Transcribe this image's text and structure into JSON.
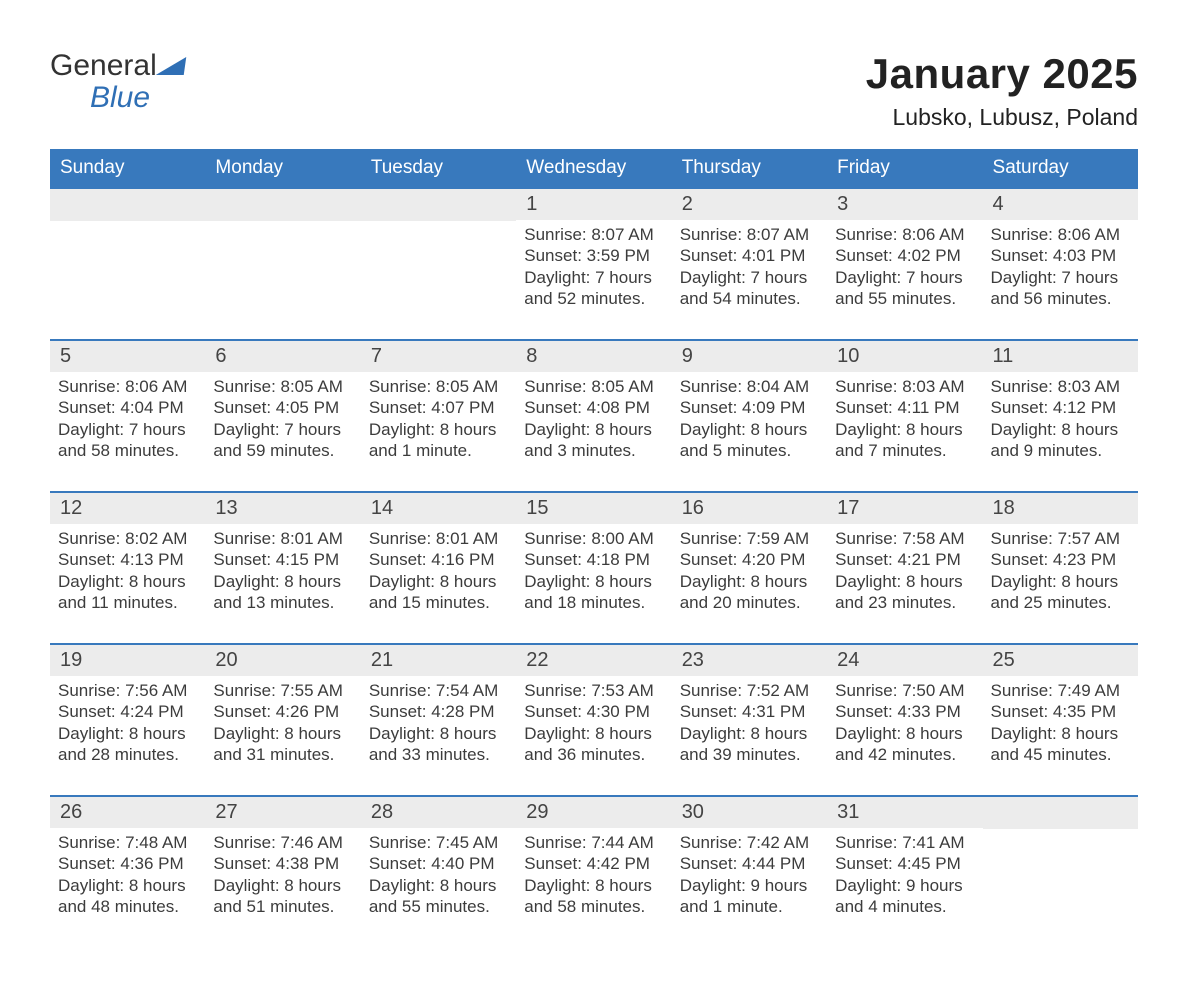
{
  "brand": {
    "general": "General",
    "blue": "Blue"
  },
  "title": "January 2025",
  "location": "Lubsko, Lubusz, Poland",
  "colors": {
    "header_bg": "#3879bd",
    "header_text": "#ffffff",
    "week_rule": "#3879bd",
    "daynum_bg": "#ececec",
    "body_text": "#3c3c3c",
    "logo_blue": "#2f6fb5"
  },
  "daynames": [
    "Sunday",
    "Monday",
    "Tuesday",
    "Wednesday",
    "Thursday",
    "Friday",
    "Saturday"
  ],
  "field_labels": {
    "sunrise": "Sunrise:",
    "sunset": "Sunset:",
    "daylight": "Daylight:"
  },
  "weeks": [
    [
      null,
      null,
      null,
      {
        "n": 1,
        "sunrise": "8:07 AM",
        "sunset": "3:59 PM",
        "daylight": "7 hours and 52 minutes."
      },
      {
        "n": 2,
        "sunrise": "8:07 AM",
        "sunset": "4:01 PM",
        "daylight": "7 hours and 54 minutes."
      },
      {
        "n": 3,
        "sunrise": "8:06 AM",
        "sunset": "4:02 PM",
        "daylight": "7 hours and 55 minutes."
      },
      {
        "n": 4,
        "sunrise": "8:06 AM",
        "sunset": "4:03 PM",
        "daylight": "7 hours and 56 minutes."
      }
    ],
    [
      {
        "n": 5,
        "sunrise": "8:06 AM",
        "sunset": "4:04 PM",
        "daylight": "7 hours and 58 minutes."
      },
      {
        "n": 6,
        "sunrise": "8:05 AM",
        "sunset": "4:05 PM",
        "daylight": "7 hours and 59 minutes."
      },
      {
        "n": 7,
        "sunrise": "8:05 AM",
        "sunset": "4:07 PM",
        "daylight": "8 hours and 1 minute."
      },
      {
        "n": 8,
        "sunrise": "8:05 AM",
        "sunset": "4:08 PM",
        "daylight": "8 hours and 3 minutes."
      },
      {
        "n": 9,
        "sunrise": "8:04 AM",
        "sunset": "4:09 PM",
        "daylight": "8 hours and 5 minutes."
      },
      {
        "n": 10,
        "sunrise": "8:03 AM",
        "sunset": "4:11 PM",
        "daylight": "8 hours and 7 minutes."
      },
      {
        "n": 11,
        "sunrise": "8:03 AM",
        "sunset": "4:12 PM",
        "daylight": "8 hours and 9 minutes."
      }
    ],
    [
      {
        "n": 12,
        "sunrise": "8:02 AM",
        "sunset": "4:13 PM",
        "daylight": "8 hours and 11 minutes."
      },
      {
        "n": 13,
        "sunrise": "8:01 AM",
        "sunset": "4:15 PM",
        "daylight": "8 hours and 13 minutes."
      },
      {
        "n": 14,
        "sunrise": "8:01 AM",
        "sunset": "4:16 PM",
        "daylight": "8 hours and 15 minutes."
      },
      {
        "n": 15,
        "sunrise": "8:00 AM",
        "sunset": "4:18 PM",
        "daylight": "8 hours and 18 minutes."
      },
      {
        "n": 16,
        "sunrise": "7:59 AM",
        "sunset": "4:20 PM",
        "daylight": "8 hours and 20 minutes."
      },
      {
        "n": 17,
        "sunrise": "7:58 AM",
        "sunset": "4:21 PM",
        "daylight": "8 hours and 23 minutes."
      },
      {
        "n": 18,
        "sunrise": "7:57 AM",
        "sunset": "4:23 PM",
        "daylight": "8 hours and 25 minutes."
      }
    ],
    [
      {
        "n": 19,
        "sunrise": "7:56 AM",
        "sunset": "4:24 PM",
        "daylight": "8 hours and 28 minutes."
      },
      {
        "n": 20,
        "sunrise": "7:55 AM",
        "sunset": "4:26 PM",
        "daylight": "8 hours and 31 minutes."
      },
      {
        "n": 21,
        "sunrise": "7:54 AM",
        "sunset": "4:28 PM",
        "daylight": "8 hours and 33 minutes."
      },
      {
        "n": 22,
        "sunrise": "7:53 AM",
        "sunset": "4:30 PM",
        "daylight": "8 hours and 36 minutes."
      },
      {
        "n": 23,
        "sunrise": "7:52 AM",
        "sunset": "4:31 PM",
        "daylight": "8 hours and 39 minutes."
      },
      {
        "n": 24,
        "sunrise": "7:50 AM",
        "sunset": "4:33 PM",
        "daylight": "8 hours and 42 minutes."
      },
      {
        "n": 25,
        "sunrise": "7:49 AM",
        "sunset": "4:35 PM",
        "daylight": "8 hours and 45 minutes."
      }
    ],
    [
      {
        "n": 26,
        "sunrise": "7:48 AM",
        "sunset": "4:36 PM",
        "daylight": "8 hours and 48 minutes."
      },
      {
        "n": 27,
        "sunrise": "7:46 AM",
        "sunset": "4:38 PM",
        "daylight": "8 hours and 51 minutes."
      },
      {
        "n": 28,
        "sunrise": "7:45 AM",
        "sunset": "4:40 PM",
        "daylight": "8 hours and 55 minutes."
      },
      {
        "n": 29,
        "sunrise": "7:44 AM",
        "sunset": "4:42 PM",
        "daylight": "8 hours and 58 minutes."
      },
      {
        "n": 30,
        "sunrise": "7:42 AM",
        "sunset": "4:44 PM",
        "daylight": "9 hours and 1 minute."
      },
      {
        "n": 31,
        "sunrise": "7:41 AM",
        "sunset": "4:45 PM",
        "daylight": "9 hours and 4 minutes."
      },
      null
    ]
  ]
}
